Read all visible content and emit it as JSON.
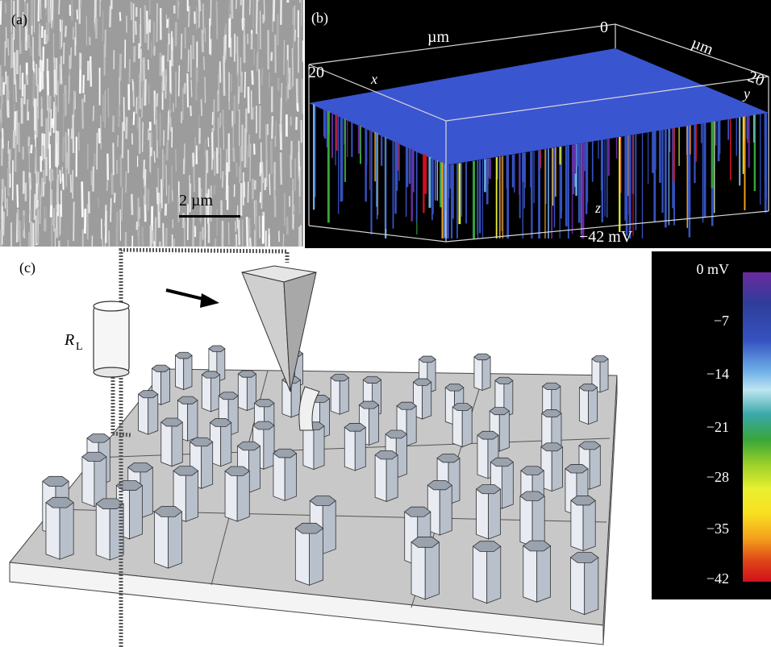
{
  "panel_a": {
    "label": "(a)",
    "scale_bar": "2 µm"
  },
  "panel_b": {
    "label": "(b)",
    "axis_unit_x": "µm",
    "axis_unit_y": "µm",
    "x_axis": "x",
    "y_axis": "y",
    "z_axis": "z",
    "tick_origin": "0",
    "tick_x_max": "20",
    "tick_y_max": "20",
    "z_min_label": "−42 mV"
  },
  "panel_c": {
    "label": "(c)",
    "resistor_symbol": "R",
    "resistor_subscript": "L"
  },
  "colorbar": {
    "ticks": [
      "0 mV",
      "−7",
      "−14",
      "−21",
      "−28",
      "−35",
      "−42"
    ],
    "colors": [
      "#6a2aa0",
      "#3552c0",
      "#6fb0e8",
      "#37a63a",
      "#e8f030",
      "#f4a01c",
      "#d0101c"
    ]
  }
}
